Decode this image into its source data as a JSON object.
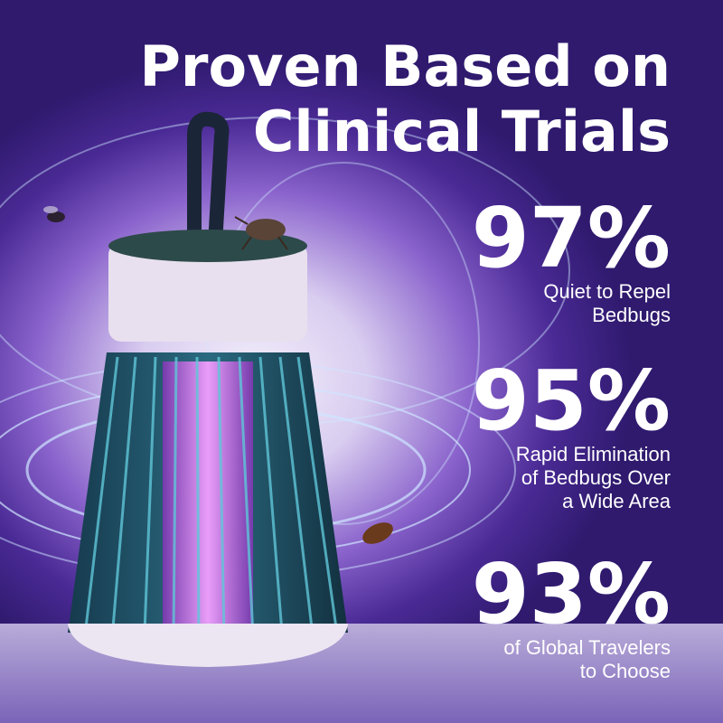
{
  "headline": {
    "line1": "Proven Based on",
    "line2": "Clinical Trials"
  },
  "stats": [
    {
      "value": "97%",
      "line1": "Quiet to Repel",
      "line2": "Bedbugs"
    },
    {
      "value": "95%",
      "line1": "Rapid Elimination",
      "line2": "of Bedbugs Over",
      "line3": "a Wide Area"
    },
    {
      "value": "93%",
      "line1": "of Global Travelers",
      "line2": "to Choose"
    }
  ],
  "colors": {
    "background": "#4a2a95",
    "glow": "#f4f0fb",
    "uv_light": "#d86cf0",
    "lamp_cage": "#1f4a5e",
    "text": "#ffffff"
  }
}
